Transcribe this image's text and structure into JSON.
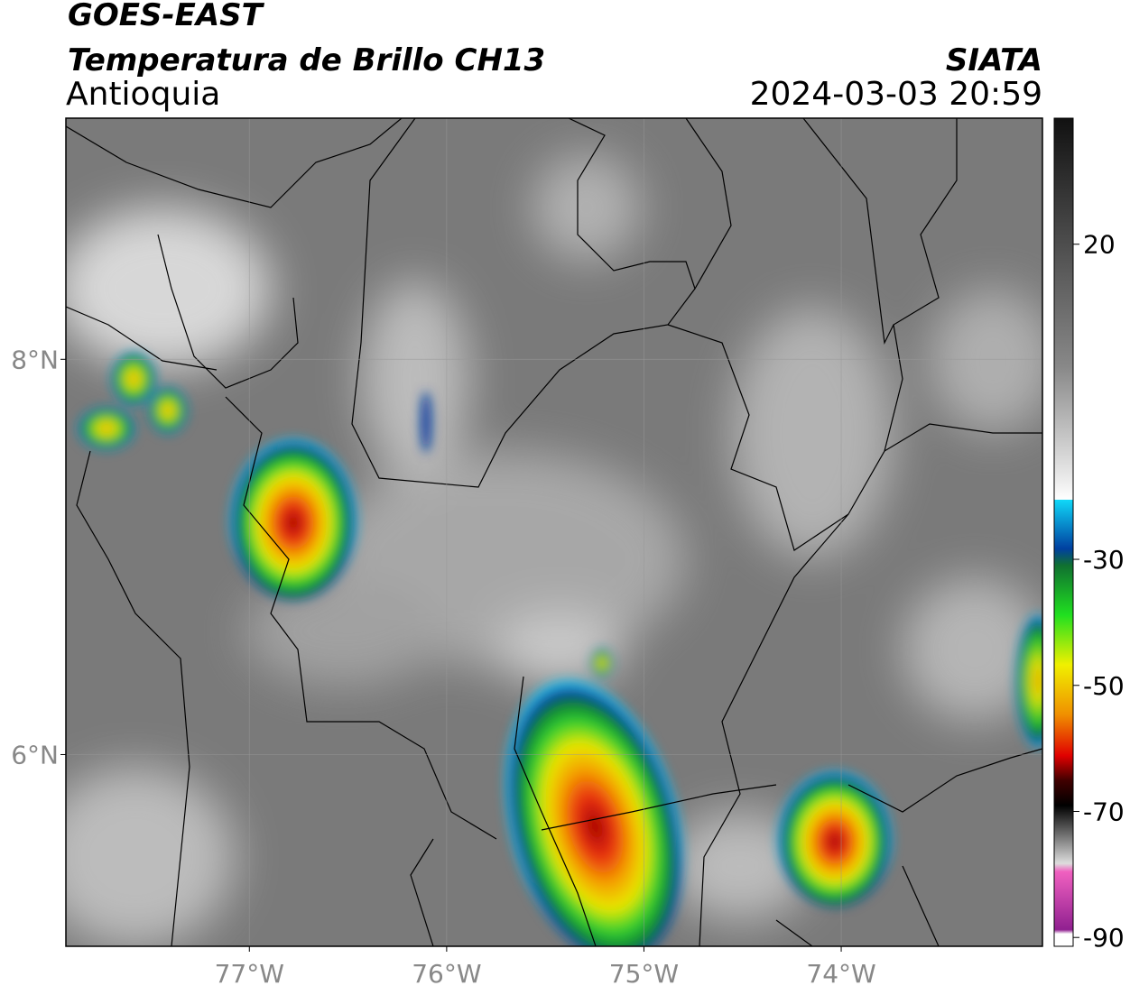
{
  "header": {
    "title": "GOES-EAST",
    "subtitle": "Temperatura de Brillo CH13",
    "region": "Antioquia",
    "source": "SIATA",
    "datetime": "2024-03-03 20:59"
  },
  "map": {
    "lonlim": [
      -77.93,
      -72.98
    ],
    "latlim": [
      5.03,
      9.22
    ],
    "xticks": [
      {
        "value": -77,
        "label": "77°W"
      },
      {
        "value": -76,
        "label": "76°W"
      },
      {
        "value": -75,
        "label": "75°W"
      },
      {
        "value": -74,
        "label": "74°W"
      }
    ],
    "yticks": [
      {
        "value": 8,
        "label": "8°N"
      },
      {
        "value": 6,
        "label": "6°N"
      }
    ],
    "grid": true
  },
  "colorbar": {
    "lim": [
      -91.4,
      40
    ],
    "ticks": [
      20,
      -30,
      -50,
      -70,
      -90
    ]
  }
}
